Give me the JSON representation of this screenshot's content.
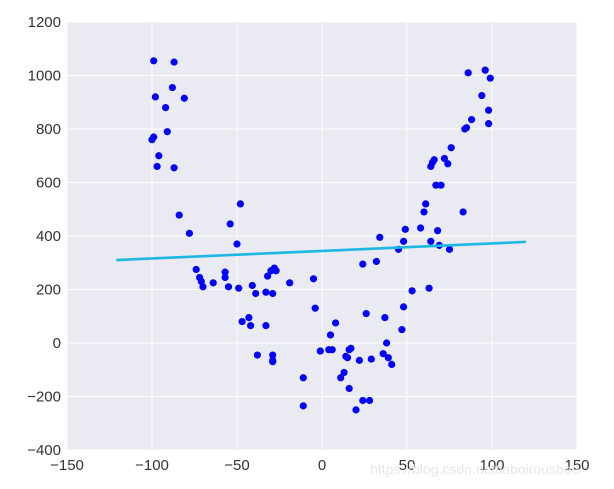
{
  "chart_data": {
    "type": "scatter",
    "title": "",
    "xlabel": "",
    "ylabel": "",
    "xlim": [
      -150,
      150
    ],
    "ylim": [
      -400,
      1200
    ],
    "xticks": [
      "−150",
      "−100",
      "−50",
      "0",
      "50",
      "100",
      "150"
    ],
    "yticks": [
      "−400",
      "−200",
      "0",
      "200",
      "400",
      "600",
      "800",
      "1000",
      "1200"
    ],
    "xtick_values": [
      -150,
      -100,
      -50,
      0,
      50,
      100,
      150
    ],
    "ytick_values": [
      -400,
      -200,
      0,
      200,
      400,
      600,
      800,
      1000,
      1200
    ],
    "grid": true,
    "plot_background": "#eaeaf2",
    "grid_color": "#ffffff",
    "point_color": "#0000ff",
    "line_color": "#1cb8e3",
    "series": [
      {
        "type": "scatter",
        "points": [
          [
            -99,
            1055
          ],
          [
            -87,
            1050
          ],
          [
            -98,
            920
          ],
          [
            -88,
            955
          ],
          [
            -81,
            915
          ],
          [
            -92,
            880
          ],
          [
            -91,
            790
          ],
          [
            -100,
            760
          ],
          [
            -99,
            770
          ],
          [
            -96,
            700
          ],
          [
            -97,
            660
          ],
          [
            -87,
            655
          ],
          [
            -84,
            478
          ],
          [
            -78,
            410
          ],
          [
            -48,
            520
          ],
          [
            -54,
            445
          ],
          [
            -50,
            370
          ],
          [
            -74,
            275
          ],
          [
            -72,
            245
          ],
          [
            -71,
            230
          ],
          [
            -70,
            210
          ],
          [
            -64,
            225
          ],
          [
            -57,
            265
          ],
          [
            -57,
            245
          ],
          [
            -55,
            210
          ],
          [
            -49,
            205
          ],
          [
            -41,
            215
          ],
          [
            -32,
            250
          ],
          [
            -30,
            270
          ],
          [
            -28,
            280
          ],
          [
            -27,
            270
          ],
          [
            -39,
            185
          ],
          [
            -33,
            190
          ],
          [
            -29,
            185
          ],
          [
            -19,
            225
          ],
          [
            -47,
            80
          ],
          [
            -43,
            95
          ],
          [
            -42,
            65
          ],
          [
            -33,
            65
          ],
          [
            -38,
            -45
          ],
          [
            -29,
            -45
          ],
          [
            -29,
            -65
          ],
          [
            -29,
            -70
          ],
          [
            -5,
            240
          ],
          [
            -4,
            130
          ],
          [
            5,
            30
          ],
          [
            -1,
            -30
          ],
          [
            6,
            -25
          ],
          [
            4,
            -25
          ],
          [
            8,
            75
          ],
          [
            -11,
            -130
          ],
          [
            -11,
            -235
          ],
          [
            13,
            -110
          ],
          [
            11,
            -130
          ],
          [
            15,
            -55
          ],
          [
            16,
            -25
          ],
          [
            17,
            -20
          ],
          [
            14,
            -50
          ],
          [
            16,
            -170
          ],
          [
            20,
            -250
          ],
          [
            24,
            -215
          ],
          [
            28,
            -215
          ],
          [
            22,
            -65
          ],
          [
            29,
            -60
          ],
          [
            24,
            295
          ],
          [
            26,
            110
          ],
          [
            34,
            395
          ],
          [
            32,
            305
          ],
          [
            37,
            95
          ],
          [
            38,
            0
          ],
          [
            36,
            -40
          ],
          [
            39,
            -55
          ],
          [
            41,
            -80
          ],
          [
            45,
            350
          ],
          [
            47,
            50
          ],
          [
            48,
            380
          ],
          [
            48,
            135
          ],
          [
            49,
            425
          ],
          [
            53,
            195
          ],
          [
            58,
            430
          ],
          [
            60,
            490
          ],
          [
            61,
            520
          ],
          [
            64,
            660
          ],
          [
            65,
            675
          ],
          [
            66,
            685
          ],
          [
            67,
            590
          ],
          [
            68,
            420
          ],
          [
            69,
            365
          ],
          [
            64,
            380
          ],
          [
            63,
            205
          ],
          [
            70,
            590
          ],
          [
            72,
            690
          ],
          [
            74,
            670
          ],
          [
            75,
            350
          ],
          [
            76,
            730
          ],
          [
            83,
            490
          ],
          [
            84,
            800
          ],
          [
            85,
            805
          ],
          [
            86,
            1010
          ],
          [
            88,
            835
          ],
          [
            94,
            925
          ],
          [
            96,
            1020
          ],
          [
            98,
            870
          ],
          [
            98,
            820
          ],
          [
            99,
            990
          ]
        ]
      },
      {
        "type": "line",
        "points": [
          [
            -121,
            310
          ],
          [
            120,
            378
          ]
        ]
      }
    ]
  },
  "watermark": "https://blog.csdn.net/laboirousbee"
}
